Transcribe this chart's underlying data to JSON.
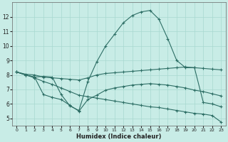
{
  "xlabel": "Humidex (Indice chaleur)",
  "bg_color": "#c8ece6",
  "line_color": "#2d6e65",
  "grid_color": "#a8d8d0",
  "xlim": [
    -0.5,
    23.5
  ],
  "ylim": [
    4.5,
    13.0
  ],
  "yticks": [
    5,
    6,
    7,
    8,
    9,
    10,
    11,
    12
  ],
  "xticks": [
    0,
    1,
    2,
    3,
    4,
    5,
    6,
    7,
    8,
    9,
    10,
    11,
    12,
    13,
    14,
    15,
    16,
    17,
    18,
    19,
    20,
    21,
    22,
    23
  ],
  "series": [
    {
      "x": [
        0,
        1,
        2,
        3,
        4,
        5,
        6,
        7,
        8,
        9,
        10,
        11,
        12,
        13,
        14,
        15,
        16,
        17,
        18,
        19,
        20,
        21,
        22,
        23
      ],
      "y": [
        8.2,
        8.0,
        7.85,
        7.9,
        7.85,
        6.65,
        5.85,
        5.55,
        7.55,
        8.9,
        10.0,
        10.8,
        11.6,
        12.1,
        12.35,
        12.45,
        11.85,
        10.5,
        9.0,
        8.5,
        8.5,
        6.1,
        6.0,
        5.8
      ]
    },
    {
      "x": [
        0,
        1,
        2,
        3,
        4,
        5,
        6,
        7,
        8,
        9,
        10,
        11,
        12,
        13,
        14,
        15,
        16,
        17,
        18,
        19,
        20,
        21,
        22,
        23
      ],
      "y": [
        8.2,
        8.05,
        8.0,
        7.85,
        7.8,
        7.75,
        7.7,
        7.65,
        7.8,
        8.0,
        8.1,
        8.15,
        8.2,
        8.25,
        8.3,
        8.35,
        8.4,
        8.45,
        8.5,
        8.55,
        8.5,
        8.45,
        8.4,
        8.35
      ]
    },
    {
      "x": [
        0,
        1,
        2,
        3,
        4,
        5,
        6,
        7,
        8,
        9,
        10,
        11,
        12,
        13,
        14,
        15,
        16,
        17,
        18,
        19,
        20,
        21,
        22,
        23
      ],
      "y": [
        8.2,
        8.0,
        7.85,
        6.65,
        6.45,
        6.3,
        5.9,
        5.5,
        6.3,
        6.6,
        6.95,
        7.1,
        7.2,
        7.3,
        7.35,
        7.4,
        7.35,
        7.3,
        7.2,
        7.1,
        6.95,
        6.85,
        6.7,
        6.55
      ]
    },
    {
      "x": [
        0,
        1,
        2,
        3,
        4,
        5,
        6,
        7,
        8,
        9,
        10,
        11,
        12,
        13,
        14,
        15,
        16,
        17,
        18,
        19,
        20,
        21,
        22,
        23
      ],
      "y": [
        8.2,
        8.0,
        7.8,
        7.55,
        7.35,
        7.1,
        6.85,
        6.6,
        6.5,
        6.4,
        6.3,
        6.2,
        6.1,
        6.0,
        5.9,
        5.8,
        5.75,
        5.65,
        5.55,
        5.45,
        5.35,
        5.3,
        5.2,
        4.75
      ]
    }
  ]
}
